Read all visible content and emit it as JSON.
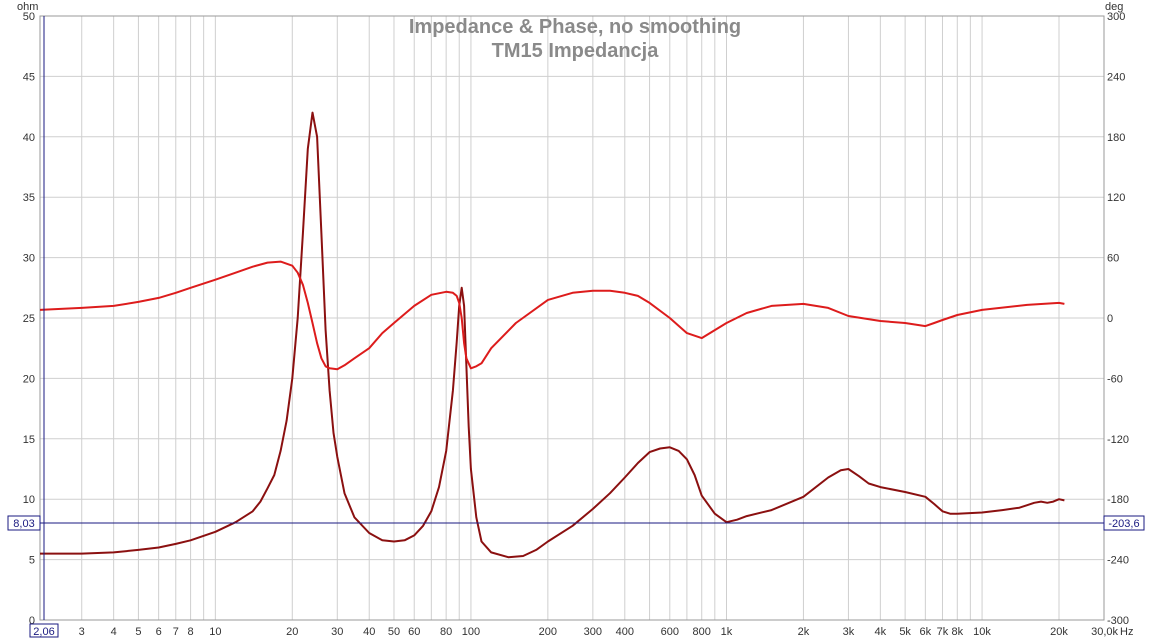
{
  "chart_data": {
    "type": "line",
    "title": "Impedance & Phase, no smoothing",
    "subtitle": "TM15 Impedancja",
    "x_unit": "Hz",
    "x_scale": "log",
    "x_range": [
      2.06,
      30000
    ],
    "x_ticks": [
      {
        "value": 2.06,
        "label": "2,06"
      },
      {
        "value": 3,
        "label": "3"
      },
      {
        "value": 4,
        "label": "4"
      },
      {
        "value": 5,
        "label": "5"
      },
      {
        "value": 6,
        "label": "6"
      },
      {
        "value": 7,
        "label": "7"
      },
      {
        "value": 8,
        "label": "8"
      },
      {
        "value": 10,
        "label": "10"
      },
      {
        "value": 20,
        "label": "20"
      },
      {
        "value": 30,
        "label": "30"
      },
      {
        "value": 40,
        "label": "40"
      },
      {
        "value": 50,
        "label": "50"
      },
      {
        "value": 60,
        "label": "60"
      },
      {
        "value": 80,
        "label": "80"
      },
      {
        "value": 100,
        "label": "100"
      },
      {
        "value": 200,
        "label": "200"
      },
      {
        "value": 300,
        "label": "300"
      },
      {
        "value": 400,
        "label": "400"
      },
      {
        "value": 600,
        "label": "600"
      },
      {
        "value": 800,
        "label": "800"
      },
      {
        "value": 1000,
        "label": "1k"
      },
      {
        "value": 2000,
        "label": "2k"
      },
      {
        "value": 3000,
        "label": "3k"
      },
      {
        "value": 4000,
        "label": "4k"
      },
      {
        "value": 5000,
        "label": "5k"
      },
      {
        "value": 6000,
        "label": "6k"
      },
      {
        "value": 7000,
        "label": "7k"
      },
      {
        "value": 8000,
        "label": "8k"
      },
      {
        "value": 10000,
        "label": "10k"
      },
      {
        "value": 20000,
        "label": "20k"
      },
      {
        "value": 30000,
        "label": "30,0k"
      }
    ],
    "y_left": {
      "unit": "ohm",
      "range": [
        0,
        50
      ],
      "ticks": [
        "0",
        "5",
        "10",
        "15",
        "20",
        "25",
        "30",
        "35",
        "40",
        "45",
        "50"
      ]
    },
    "y_right": {
      "unit": "deg",
      "range": [
        -300,
        300
      ],
      "ticks": [
        "-300",
        "-240",
        "-180",
        "-120",
        "-60",
        "0",
        "60",
        "120",
        "180",
        "240",
        "300"
      ]
    },
    "cursor": {
      "left_value": 8.03,
      "left_label": "8,03",
      "right_value": -203.6,
      "right_label": "-203,6",
      "color": "#1a1a80"
    },
    "grid": true,
    "series": [
      {
        "name": "",
        "axis": "left",
        "color": "#8b1010",
        "x": [
          2.06,
          3,
          4,
          5,
          6,
          7,
          8,
          10,
          12,
          14,
          15,
          16,
          17,
          18,
          19,
          20,
          21,
          22,
          23,
          24,
          25,
          26,
          27,
          28,
          29,
          30,
          32,
          35,
          40,
          45,
          50,
          55,
          60,
          65,
          70,
          75,
          80,
          85,
          88,
          90,
          92,
          94,
          96,
          98,
          100,
          105,
          110,
          120,
          140,
          160,
          180,
          200,
          250,
          300,
          350,
          400,
          450,
          500,
          550,
          600,
          650,
          700,
          750,
          800,
          900,
          1000,
          1100,
          1200,
          1500,
          2000,
          2500,
          2800,
          3000,
          3300,
          3600,
          4000,
          5000,
          6000,
          6500,
          7000,
          7500,
          8000,
          10000,
          12000,
          14000,
          15000,
          16000,
          17000,
          18000,
          19000,
          20000,
          21000
        ],
        "values": [
          5.5,
          5.5,
          5.6,
          5.8,
          6.0,
          6.3,
          6.6,
          7.3,
          8.1,
          9.0,
          9.8,
          10.9,
          12.0,
          14.0,
          16.5,
          20.0,
          25.0,
          32.0,
          39.0,
          42.0,
          40.0,
          32.0,
          24.0,
          19.0,
          15.5,
          13.5,
          10.5,
          8.5,
          7.2,
          6.6,
          6.5,
          6.6,
          7.0,
          7.8,
          9.0,
          11.0,
          14.0,
          19.0,
          23.0,
          26.0,
          27.5,
          26.0,
          21.0,
          16.0,
          12.5,
          8.5,
          6.5,
          5.6,
          5.2,
          5.3,
          5.8,
          6.5,
          7.8,
          9.2,
          10.5,
          11.8,
          13.0,
          13.9,
          14.2,
          14.3,
          14.0,
          13.3,
          12.0,
          10.3,
          8.8,
          8.1,
          8.3,
          8.6,
          9.1,
          10.2,
          11.8,
          12.4,
          12.5,
          11.9,
          11.3,
          11.0,
          10.6,
          10.2,
          9.6,
          9.0,
          8.8,
          8.8,
          8.9,
          9.1,
          9.3,
          9.5,
          9.7,
          9.8,
          9.7,
          9.8,
          10.0,
          9.9
        ]
      },
      {
        "name": "",
        "axis": "right",
        "color": "#dd1c1c",
        "x": [
          2.06,
          3,
          4,
          5,
          6,
          7,
          8,
          10,
          12,
          14,
          16,
          18,
          20,
          21,
          22,
          23,
          24,
          25,
          26,
          27,
          28,
          30,
          32,
          35,
          40,
          45,
          50,
          60,
          70,
          80,
          85,
          88,
          90,
          92,
          94,
          96,
          100,
          105,
          110,
          120,
          150,
          200,
          250,
          300,
          350,
          400,
          450,
          500,
          600,
          700,
          800,
          900,
          1000,
          1200,
          1500,
          2000,
          2500,
          3000,
          4000,
          5000,
          6000,
          6500,
          7000,
          8000,
          10000,
          15000,
          20000,
          21000
        ],
        "values": [
          8,
          10,
          12,
          16,
          20,
          25,
          30,
          38,
          45,
          51,
          55,
          56,
          52,
          45,
          33,
          15,
          -5,
          -25,
          -40,
          -48,
          -50,
          -51,
          -47,
          -40,
          -30,
          -15,
          -5,
          12,
          23,
          26,
          25,
          22,
          15,
          0,
          -25,
          -40,
          -50,
          -48,
          -45,
          -30,
          -5,
          18,
          25,
          27,
          27,
          25,
          22,
          15,
          0,
          -15,
          -20,
          -12,
          -5,
          5,
          12,
          14,
          10,
          2,
          -3,
          -5,
          -8,
          -5,
          -2,
          3,
          8,
          13,
          15,
          14
        ]
      }
    ]
  }
}
